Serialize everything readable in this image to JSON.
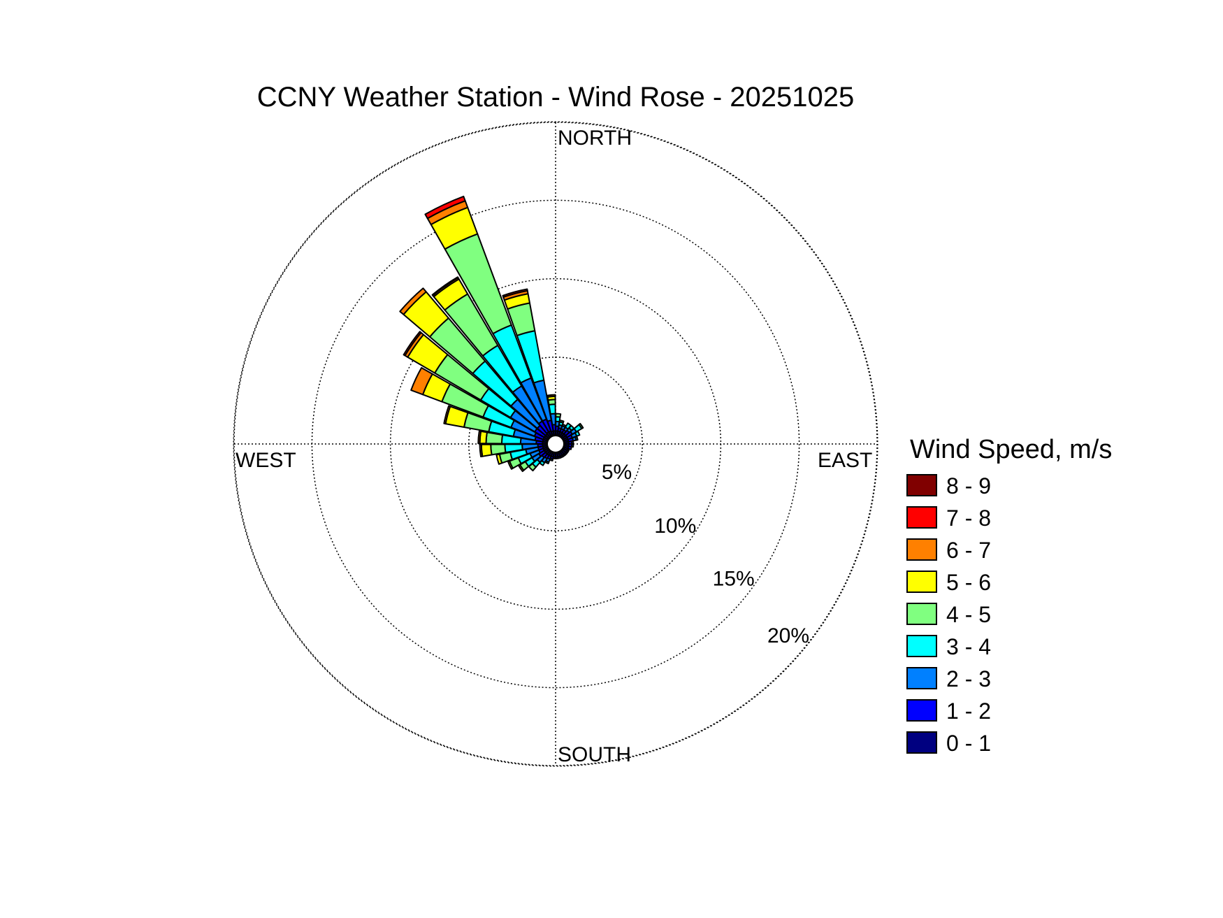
{
  "chart_data": {
    "type": "wind-rose",
    "title": "CCNY Weather Station - Wind Rose - 20251025",
    "direction_labels": {
      "north": "NORTH",
      "south": "SOUTH",
      "east": "EAST",
      "west": "WEST"
    },
    "radial_unit": "%",
    "radial_ticks": [
      5,
      10,
      15,
      20
    ],
    "radial_tick_labels": [
      "5%",
      "10%",
      "15%",
      "20%"
    ],
    "rmax": 20.5,
    "sector_width_deg": 10,
    "legend_title": "Wind Speed, m/s",
    "bins": [
      {
        "label": "0 - 1",
        "color": "#000080"
      },
      {
        "label": "1 - 2",
        "color": "#0000ff"
      },
      {
        "label": "2 - 3",
        "color": "#0080ff"
      },
      {
        "label": "3 - 4",
        "color": "#00ffff"
      },
      {
        "label": "4 - 5",
        "color": "#80ff80"
      },
      {
        "label": "5 - 6",
        "color": "#ffff00"
      },
      {
        "label": "6 - 7",
        "color": "#ff8000"
      },
      {
        "label": "7 - 8",
        "color": "#ff0000"
      },
      {
        "label": "8 - 9",
        "color": "#800000"
      }
    ],
    "sectors": [
      {
        "direction": 335,
        "values": [
          0.35,
          0.8,
          2.8,
          3.6,
          6.2,
          1.8,
          0.45,
          0.3,
          0.0
        ]
      },
      {
        "direction": 325,
        "values": [
          0.35,
          0.8,
          2.6,
          3.0,
          3.8,
          1.1,
          0.1,
          0.05,
          0.0
        ]
      },
      {
        "direction": 315,
        "values": [
          0.3,
          0.7,
          2.2,
          3.2,
          3.6,
          2.2,
          0.3,
          0.0,
          0.0
        ]
      },
      {
        "direction": 345,
        "values": [
          0.3,
          0.7,
          2.6,
          3.2,
          1.8,
          0.6,
          0.2,
          0.1,
          0.0
        ]
      },
      {
        "direction": 305,
        "values": [
          0.3,
          0.7,
          1.8,
          2.2,
          3.4,
          2.0,
          0.2,
          0.1,
          0.0
        ]
      },
      {
        "direction": 295,
        "values": [
          0.3,
          0.6,
          1.6,
          1.9,
          2.8,
          1.3,
          0.8,
          0.0,
          0.0
        ]
      },
      {
        "direction": 285,
        "values": [
          0.3,
          0.5,
          1.4,
          1.6,
          1.6,
          1.2,
          0.1,
          0.0,
          0.0
        ]
      },
      {
        "direction": 275,
        "values": [
          0.3,
          0.4,
          1.0,
          1.2,
          1.0,
          0.4,
          0.1,
          0.0,
          0.0
        ]
      },
      {
        "direction": 355,
        "values": [
          0.3,
          0.4,
          0.7,
          0.6,
          0.3,
          0.2,
          0.1,
          0.0,
          0.0
        ]
      },
      {
        "direction": 5,
        "values": [
          0.3,
          0.3,
          0.3,
          0.3,
          0.2,
          0.0,
          0.0,
          0.0,
          0.0
        ]
      },
      {
        "direction": 15,
        "values": [
          0.3,
          0.2,
          0.2,
          0.2,
          0.1,
          0.0,
          0.0,
          0.0,
          0.0
        ]
      },
      {
        "direction": 25,
        "values": [
          0.3,
          0.2,
          0.2,
          0.1,
          0.0,
          0.0,
          0.0,
          0.0,
          0.0
        ]
      },
      {
        "direction": 35,
        "values": [
          0.3,
          0.2,
          0.2,
          0.3,
          0.0,
          0.0,
          0.0,
          0.0,
          0.0
        ]
      },
      {
        "direction": 45,
        "values": [
          0.3,
          0.3,
          0.2,
          0.2,
          0.0,
          0.0,
          0.0,
          0.0,
          0.0
        ]
      },
      {
        "direction": 55,
        "values": [
          0.3,
          0.4,
          0.3,
          0.4,
          0.1,
          0.0,
          0.0,
          0.0,
          0.0
        ]
      },
      {
        "direction": 65,
        "values": [
          0.3,
          0.3,
          0.3,
          0.2,
          0.0,
          0.0,
          0.0,
          0.0,
          0.0
        ]
      },
      {
        "direction": 75,
        "values": [
          0.3,
          0.3,
          0.2,
          0.1,
          0.0,
          0.0,
          0.0,
          0.0,
          0.0
        ]
      },
      {
        "direction": 85,
        "values": [
          0.3,
          0.2,
          0.1,
          0.0,
          0.0,
          0.0,
          0.0,
          0.0,
          0.0
        ]
      },
      {
        "direction": 95,
        "values": [
          0.3,
          0.2,
          0.1,
          0.0,
          0.0,
          0.0,
          0.0,
          0.0,
          0.0
        ]
      },
      {
        "direction": 105,
        "values": [
          0.3,
          0.2,
          0.0,
          0.0,
          0.0,
          0.0,
          0.0,
          0.0,
          0.0
        ]
      },
      {
        "direction": 115,
        "values": [
          0.3,
          0.1,
          0.0,
          0.0,
          0.0,
          0.0,
          0.0,
          0.0,
          0.0
        ]
      },
      {
        "direction": 125,
        "values": [
          0.3,
          0.1,
          0.0,
          0.0,
          0.0,
          0.0,
          0.0,
          0.0,
          0.0
        ]
      },
      {
        "direction": 135,
        "values": [
          0.3,
          0.1,
          0.0,
          0.0,
          0.0,
          0.0,
          0.0,
          0.0,
          0.0
        ]
      },
      {
        "direction": 145,
        "values": [
          0.3,
          0.1,
          0.0,
          0.0,
          0.0,
          0.0,
          0.0,
          0.0,
          0.0
        ]
      },
      {
        "direction": 155,
        "values": [
          0.3,
          0.1,
          0.0,
          0.0,
          0.0,
          0.0,
          0.0,
          0.0,
          0.0
        ]
      },
      {
        "direction": 165,
        "values": [
          0.3,
          0.1,
          0.0,
          0.0,
          0.0,
          0.0,
          0.0,
          0.0,
          0.0
        ]
      },
      {
        "direction": 175,
        "values": [
          0.3,
          0.1,
          0.0,
          0.0,
          0.0,
          0.0,
          0.0,
          0.0,
          0.0
        ]
      },
      {
        "direction": 185,
        "values": [
          0.3,
          0.1,
          0.0,
          0.0,
          0.0,
          0.0,
          0.0,
          0.0,
          0.0
        ]
      },
      {
        "direction": 195,
        "values": [
          0.3,
          0.15,
          0.1,
          0.0,
          0.0,
          0.0,
          0.0,
          0.0,
          0.0
        ]
      },
      {
        "direction": 205,
        "values": [
          0.3,
          0.2,
          0.2,
          0.1,
          0.0,
          0.0,
          0.0,
          0.0,
          0.0
        ]
      },
      {
        "direction": 215,
        "values": [
          0.3,
          0.25,
          0.3,
          0.2,
          0.0,
          0.0,
          0.0,
          0.0,
          0.0
        ]
      },
      {
        "direction": 225,
        "values": [
          0.3,
          0.3,
          0.4,
          0.4,
          0.3,
          0.0,
          0.0,
          0.0,
          0.0
        ]
      },
      {
        "direction": 235,
        "values": [
          0.3,
          0.4,
          0.5,
          0.5,
          0.4,
          0.1,
          0.0,
          0.0,
          0.0
        ]
      },
      {
        "direction": 245,
        "values": [
          0.3,
          0.3,
          0.6,
          0.8,
          0.6,
          0.1,
          0.0,
          0.0,
          0.0
        ]
      },
      {
        "direction": 255,
        "values": [
          0.3,
          0.3,
          0.8,
          1.0,
          0.7,
          0.2,
          0.0,
          0.0,
          0.0
        ]
      },
      {
        "direction": 265,
        "values": [
          0.3,
          0.3,
          1.0,
          1.1,
          0.9,
          0.6,
          0.1,
          0.0,
          0.0
        ]
      }
    ]
  }
}
